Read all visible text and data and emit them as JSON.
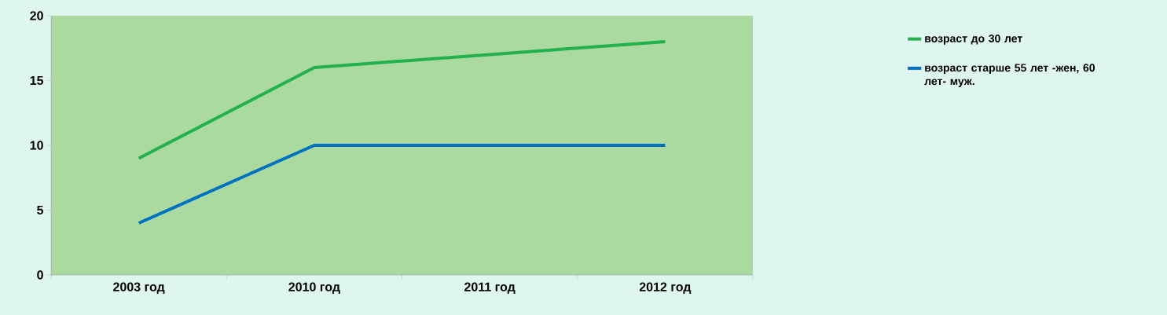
{
  "chart_data": {
    "type": "line",
    "categories": [
      "2003 год",
      "2010 год",
      "2011 год",
      "2012 год"
    ],
    "series": [
      {
        "name": "возраст до 30 лет",
        "color": "#22b14c",
        "values": [
          9,
          16,
          17,
          18
        ]
      },
      {
        "name": "возраст старше 55 лет -жен, 60 лет- муж.",
        "color": "#0070c0",
        "values": [
          4,
          10,
          10,
          10
        ]
      }
    ],
    "ylim": [
      0,
      20
    ],
    "yticks": [
      0,
      5,
      10,
      15,
      20
    ],
    "grid": false,
    "legend": "right",
    "marker": "none",
    "line_style": "solid"
  }
}
